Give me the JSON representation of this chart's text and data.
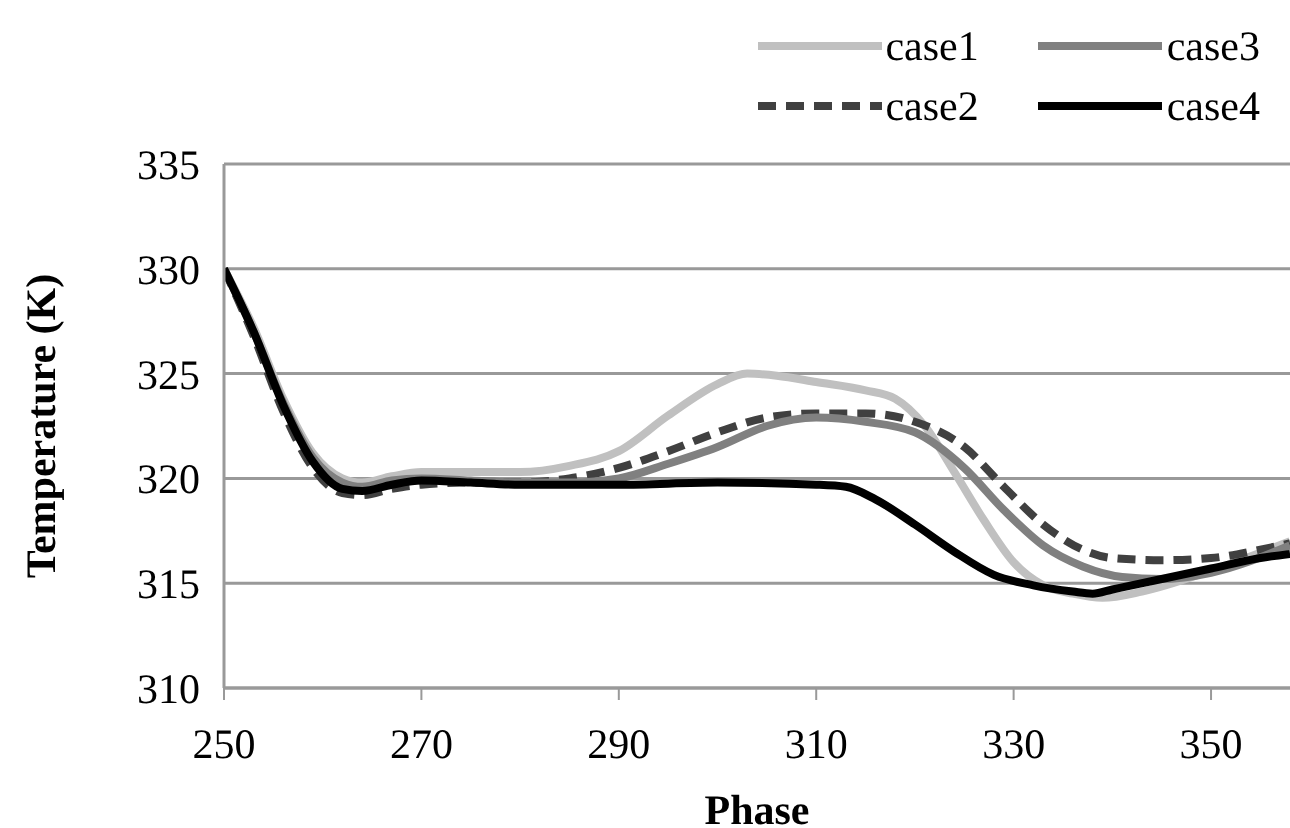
{
  "chart_data": {
    "type": "line",
    "xlabel": "Phase",
    "ylabel": "Temperature (K)",
    "xlim": [
      250,
      358
    ],
    "xticks": [
      250,
      270,
      290,
      310,
      330,
      350
    ],
    "ylim": [
      310,
      335
    ],
    "yticks": [
      310,
      315,
      320,
      325,
      330,
      335
    ],
    "grid": "y",
    "legend": "top right",
    "marker": "none",
    "series": [
      {
        "name": "case1",
        "color": "#c0c0c0",
        "line_style": "solid",
        "x": [
          250,
          253,
          256,
          259,
          262,
          264,
          267,
          270,
          275,
          280,
          285,
          290,
          295,
          300,
          303,
          306,
          310,
          315,
          318,
          321,
          324,
          327,
          330,
          333,
          336,
          339,
          343,
          350,
          358
        ],
        "values": [
          330,
          327.2,
          323.8,
          321.2,
          320,
          319.8,
          320.1,
          320.3,
          320.3,
          320.3,
          320.6,
          321.3,
          323,
          324.5,
          325,
          324.9,
          324.6,
          324.2,
          323.8,
          322.5,
          320.3,
          318,
          316,
          314.9,
          314.5,
          314.3,
          314.6,
          315.6,
          317
        ]
      },
      {
        "name": "case2",
        "color": "#404040",
        "line_style": "dashed",
        "x": [
          250,
          253,
          256,
          259,
          262,
          264,
          267,
          270,
          275,
          280,
          285,
          290,
          295,
          300,
          305,
          310,
          315,
          320,
          325,
          329,
          333,
          337,
          340,
          345,
          350,
          355,
          358
        ],
        "values": [
          330,
          326.8,
          323.2,
          320.5,
          319.3,
          319.2,
          319.5,
          319.7,
          319.8,
          319.8,
          320,
          320.5,
          321.3,
          322.2,
          322.9,
          323.1,
          323.1,
          322.7,
          321.5,
          319.6,
          317.8,
          316.6,
          316.2,
          316.1,
          316.2,
          316.6,
          316.9
        ]
      },
      {
        "name": "case3",
        "color": "#808080",
        "line_style": "solid",
        "x": [
          250,
          253,
          256,
          259,
          262,
          264,
          267,
          270,
          275,
          280,
          285,
          290,
          295,
          300,
          305,
          310,
          315,
          320,
          325,
          329,
          333,
          337,
          341,
          345,
          350,
          358
        ],
        "values": [
          330,
          327,
          323.6,
          321,
          319.8,
          319.6,
          319.9,
          320,
          319.9,
          319.8,
          319.8,
          320,
          320.7,
          321.5,
          322.5,
          322.9,
          322.7,
          322.2,
          320.5,
          318.5,
          316.8,
          315.8,
          315.3,
          315.2,
          315.5,
          316.8
        ]
      },
      {
        "name": "case4",
        "color": "#000000",
        "line_style": "solid",
        "x": [
          250,
          253,
          256,
          259,
          262,
          264,
          267,
          270,
          275,
          280,
          290,
          300,
          310,
          313,
          316,
          320,
          324,
          328,
          332,
          336,
          338,
          340,
          345,
          350,
          355,
          358
        ],
        "values": [
          330,
          327,
          323.5,
          320.8,
          319.5,
          319.4,
          319.7,
          319.9,
          319.8,
          319.7,
          319.7,
          319.8,
          319.7,
          319.6,
          319,
          317.8,
          316.5,
          315.4,
          314.9,
          314.6,
          314.5,
          314.7,
          315.2,
          315.7,
          316.2,
          316.4
        ]
      }
    ]
  }
}
